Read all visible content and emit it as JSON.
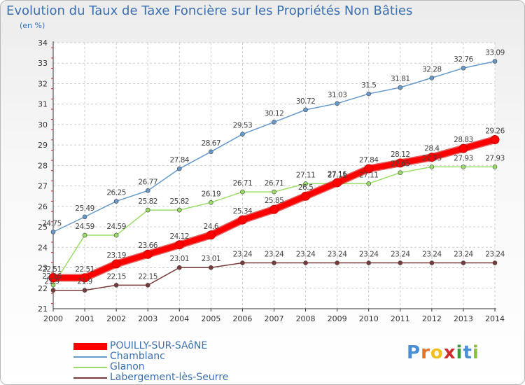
{
  "title": "Evolution du Taux de Taxe Foncière sur les Propriétés Non Bâties",
  "subtitle": "(en %)",
  "logo": {
    "letters": [
      "P",
      "r",
      "o",
      "x",
      "i",
      "t",
      "i"
    ],
    "colors": [
      "#4a8fd4",
      "#e0752a",
      "#f0c020",
      "#d02a2a",
      "#3a9a3a",
      "#4a8fd4",
      "#8ac040"
    ]
  },
  "chart_data": {
    "type": "line",
    "x": [
      2000,
      2001,
      2002,
      2003,
      2004,
      2005,
      2006,
      2007,
      2008,
      2009,
      2010,
      2011,
      2012,
      2013,
      2014
    ],
    "ylim": [
      21,
      34
    ],
    "yticks": [
      21,
      22,
      23,
      24,
      25,
      26,
      27,
      28,
      29,
      30,
      31,
      32,
      33,
      34
    ],
    "grid": true,
    "series": [
      {
        "name": "POUILLY-SUR-SAôNE",
        "color": "#ff0000",
        "values": [
          22.51,
          22.51,
          23.19,
          23.66,
          24.12,
          24.6,
          25.34,
          25.85,
          26.5,
          27.16,
          27.84,
          28.12,
          28.4,
          28.83,
          29.26
        ],
        "labels": [
          "22.51",
          "22.51",
          "23.19",
          "23.66",
          "24.12",
          "24.6",
          "25.34",
          "25.85",
          "26.5",
          "27.16",
          "27.84",
          "28.12",
          "28.4",
          "28.83",
          "29.26"
        ]
      },
      {
        "name": "Chamblanc",
        "color": "#6699cc",
        "values": [
          24.75,
          25.49,
          26.25,
          26.77,
          27.84,
          28.67,
          29.53,
          30.12,
          30.72,
          31.03,
          31.5,
          31.81,
          32.28,
          32.76,
          33.09
        ],
        "labels": [
          "24.75",
          "25.49",
          "26.25",
          "26.77",
          "27.84",
          "28.67",
          "29.53",
          "30.12",
          "30.72",
          "31.03",
          "31.5",
          "31.81",
          "32.28",
          "32.76",
          "33.09"
        ]
      },
      {
        "name": "Glanon",
        "color": "#99dd66",
        "values": [
          22.16,
          24.59,
          24.59,
          25.82,
          25.82,
          26.19,
          26.71,
          26.71,
          27.11,
          27.11,
          27.11,
          27.65,
          27.93,
          27.93,
          27.93
        ],
        "labels": [
          "22.16",
          "24.59",
          "24.59",
          "25.82",
          "25.82",
          "26.19",
          "26.71",
          "26.71",
          "27.11",
          "27.11",
          "27.11",
          "27.65",
          "27.93",
          "27.93",
          "27.93"
        ]
      },
      {
        "name": "Labergement-lès-Seurre",
        "color": "#7a3a3a",
        "values": [
          21.9,
          21.9,
          22.15,
          22.15,
          23.01,
          23.01,
          23.24,
          23.24,
          23.24,
          23.24,
          23.24,
          23.24,
          23.24,
          23.24,
          23.24
        ],
        "labels": [
          "21.9",
          "21.9",
          "22.15",
          "22.15",
          "23.01",
          "23.01",
          "23.24",
          "23.24",
          "23.24",
          "23.24",
          "23.24",
          "23.24",
          "23.24",
          "23.24",
          "23.24"
        ]
      }
    ]
  }
}
